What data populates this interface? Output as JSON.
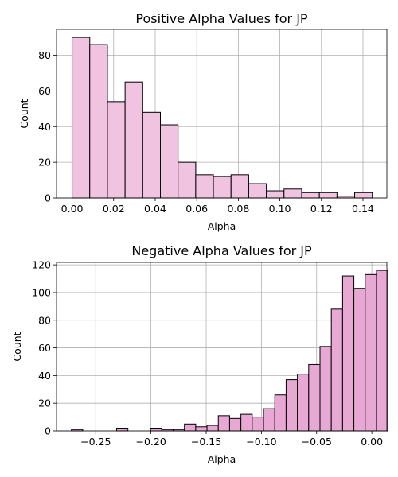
{
  "chart_data": [
    {
      "type": "bar",
      "title": "Positive Alpha Values for JP",
      "xlabel": "Alpha",
      "ylabel": "Count",
      "xlim": [
        -0.0075,
        0.1515
      ],
      "ylim": [
        0,
        94.5
      ],
      "xticks": [
        0.0,
        0.02,
        0.04,
        0.06,
        0.08,
        0.1,
        0.12,
        0.14
      ],
      "xtick_labels": [
        "0.00",
        "0.02",
        "0.04",
        "0.06",
        "0.08",
        "0.10",
        "0.12",
        "0.14"
      ],
      "yticks": [
        0,
        20,
        40,
        60,
        80
      ],
      "ytick_labels": [
        "0",
        "20",
        "40",
        "60",
        "80"
      ],
      "grid": true,
      "bar_color": "#f0c4e0",
      "bin_start": 0.0,
      "bin_width": 0.0085,
      "values": [
        90,
        86,
        54,
        65,
        48,
        41,
        20,
        13,
        12,
        13,
        8,
        4,
        5,
        3,
        3,
        1,
        3
      ]
    },
    {
      "type": "bar",
      "title": "Negative Alpha Values for JP",
      "xlabel": "Alpha",
      "ylabel": "Count",
      "xlim": [
        -0.2855,
        0.0136
      ],
      "ylim": [
        0,
        121.8
      ],
      "xticks": [
        -0.25,
        -0.2,
        -0.15,
        -0.1,
        -0.05,
        0.0
      ],
      "xtick_labels": [
        "−0.25",
        "−0.20",
        "−0.15",
        "−0.10",
        "−0.05",
        "0.00"
      ],
      "yticks": [
        0,
        20,
        40,
        60,
        80,
        100,
        120
      ],
      "ytick_labels": [
        "0",
        "20",
        "40",
        "60",
        "80",
        "100",
        "120"
      ],
      "grid": true,
      "bar_color": "#e8a8d4",
      "bin_start": -0.272,
      "bin_width": 0.01023,
      "values": [
        1,
        0,
        0,
        0,
        2,
        0,
        0,
        2,
        1,
        1,
        5,
        3,
        4,
        11,
        9,
        12,
        10,
        16,
        26,
        37,
        41,
        48,
        61,
        88,
        112,
        103,
        113,
        116
      ]
    }
  ]
}
